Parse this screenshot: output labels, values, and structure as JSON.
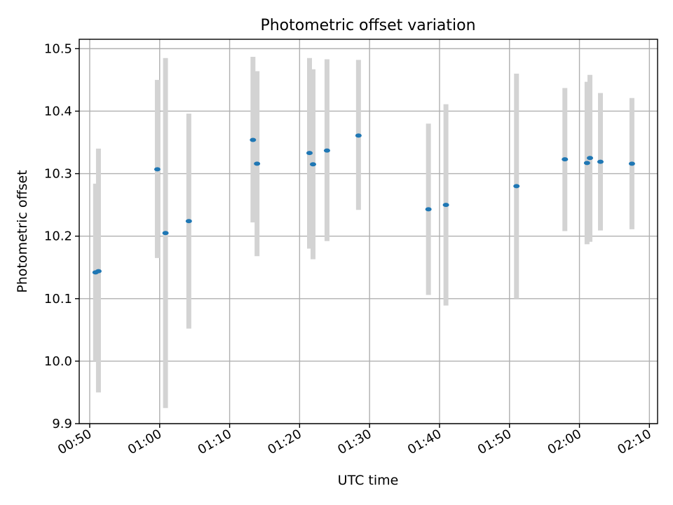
{
  "chart_data": {
    "type": "scatter",
    "title": "Photometric offset variation",
    "xlabel": "UTC time",
    "ylabel": "Photometric offset",
    "ylim": [
      9.9,
      10.515
    ],
    "xlim": [
      "00:48:30",
      "02:11:10"
    ],
    "grid": true,
    "x_ticks": [
      "00:50",
      "01:00",
      "01:10",
      "01:20",
      "01:30",
      "01:40",
      "01:50",
      "02:00",
      "02:10"
    ],
    "y_ticks": [
      9.9,
      10.0,
      10.1,
      10.2,
      10.3,
      10.4,
      10.5
    ],
    "y_tick_labels": [
      "9.9",
      "10.0",
      "10.1",
      "10.2",
      "10.3",
      "10.4",
      "10.5"
    ],
    "marker_color": "#1f77b4",
    "errorbar_color": "#d3d3d3",
    "points": [
      {
        "t": "00:50:50",
        "y": 10.142,
        "lo": 10.0,
        "hi": 10.284
      },
      {
        "t": "00:51:15",
        "y": 10.144,
        "lo": 9.95,
        "hi": 10.34
      },
      {
        "t": "00:59:40",
        "y": 10.307,
        "lo": 10.165,
        "hi": 10.45
      },
      {
        "t": "01:00:50",
        "y": 10.205,
        "lo": 9.925,
        "hi": 10.485
      },
      {
        "t": "01:04:10",
        "y": 10.224,
        "lo": 10.052,
        "hi": 10.396
      },
      {
        "t": "01:13:20",
        "y": 10.354,
        "lo": 10.222,
        "hi": 10.487
      },
      {
        "t": "01:13:55",
        "y": 10.316,
        "lo": 10.168,
        "hi": 10.464
      },
      {
        "t": "01:21:25",
        "y": 10.333,
        "lo": 10.18,
        "hi": 10.485
      },
      {
        "t": "01:21:55",
        "y": 10.315,
        "lo": 10.163,
        "hi": 10.467
      },
      {
        "t": "01:23:55",
        "y": 10.337,
        "lo": 10.192,
        "hi": 10.483
      },
      {
        "t": "01:28:25",
        "y": 10.361,
        "lo": 10.242,
        "hi": 10.482
      },
      {
        "t": "01:38:25",
        "y": 10.243,
        "lo": 10.106,
        "hi": 10.38
      },
      {
        "t": "01:40:55",
        "y": 10.25,
        "lo": 10.089,
        "hi": 10.411
      },
      {
        "t": "01:51:00",
        "y": 10.28,
        "lo": 10.1,
        "hi": 10.46
      },
      {
        "t": "01:57:55",
        "y": 10.323,
        "lo": 10.208,
        "hi": 10.437
      },
      {
        "t": "02:01:05",
        "y": 10.317,
        "lo": 10.187,
        "hi": 10.447
      },
      {
        "t": "02:01:30",
        "y": 10.325,
        "lo": 10.191,
        "hi": 10.458
      },
      {
        "t": "02:03:00",
        "y": 10.319,
        "lo": 10.209,
        "hi": 10.429
      },
      {
        "t": "02:07:30",
        "y": 10.316,
        "lo": 10.211,
        "hi": 10.421
      }
    ]
  }
}
